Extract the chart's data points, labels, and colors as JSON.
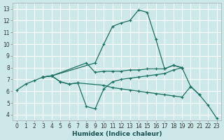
{
  "title": "",
  "xlabel": "Humidex (Indice chaleur)",
  "ylabel": "",
  "background_color": "#cce8e8",
  "grid_color": "#ffffff",
  "line_color": "#1a7060",
  "xlim": [
    -0.5,
    23.5
  ],
  "ylim": [
    3.5,
    13.5
  ],
  "xticks": [
    0,
    1,
    2,
    3,
    4,
    5,
    6,
    7,
    8,
    9,
    10,
    11,
    12,
    13,
    14,
    15,
    16,
    17,
    18,
    19,
    20,
    21,
    22,
    23
  ],
  "yticks": [
    4,
    5,
    6,
    7,
    8,
    9,
    10,
    11,
    12,
    13
  ],
  "lines": [
    {
      "x": [
        0,
        1,
        2,
        3,
        4,
        9,
        10,
        11,
        12,
        13,
        14,
        15,
        16,
        17,
        18,
        19
      ],
      "y": [
        6.1,
        6.6,
        6.9,
        7.2,
        7.3,
        8.4,
        10.0,
        11.5,
        11.8,
        12.0,
        12.9,
        12.7,
        10.4,
        7.9,
        8.2,
        8.0
      ]
    },
    {
      "x": [
        3,
        4,
        8,
        9,
        10,
        11,
        12,
        13,
        14,
        15,
        16,
        17,
        18,
        19
      ],
      "y": [
        7.2,
        7.3,
        8.4,
        7.6,
        7.7,
        7.7,
        7.7,
        7.8,
        7.8,
        7.9,
        7.9,
        7.9,
        8.2,
        8.0
      ]
    },
    {
      "x": [
        3,
        4,
        5,
        6,
        7,
        8,
        9,
        10,
        11,
        12,
        13,
        14,
        15,
        16,
        17,
        18,
        19,
        20,
        21
      ],
      "y": [
        7.2,
        7.3,
        6.8,
        6.6,
        6.7,
        4.7,
        4.5,
        6.2,
        6.8,
        7.0,
        7.1,
        7.2,
        7.3,
        7.4,
        7.5,
        7.8,
        8.0,
        6.4,
        5.7
      ]
    },
    {
      "x": [
        3,
        4,
        5,
        6,
        7,
        10,
        11,
        12,
        13,
        14,
        15,
        16,
        17,
        18,
        19,
        20,
        21,
        22,
        23
      ],
      "y": [
        7.2,
        7.3,
        6.8,
        6.6,
        6.7,
        6.5,
        6.3,
        6.2,
        6.1,
        6.0,
        5.9,
        5.8,
        5.7,
        5.6,
        5.5,
        6.4,
        5.7,
        4.8,
        3.7
      ]
    }
  ]
}
